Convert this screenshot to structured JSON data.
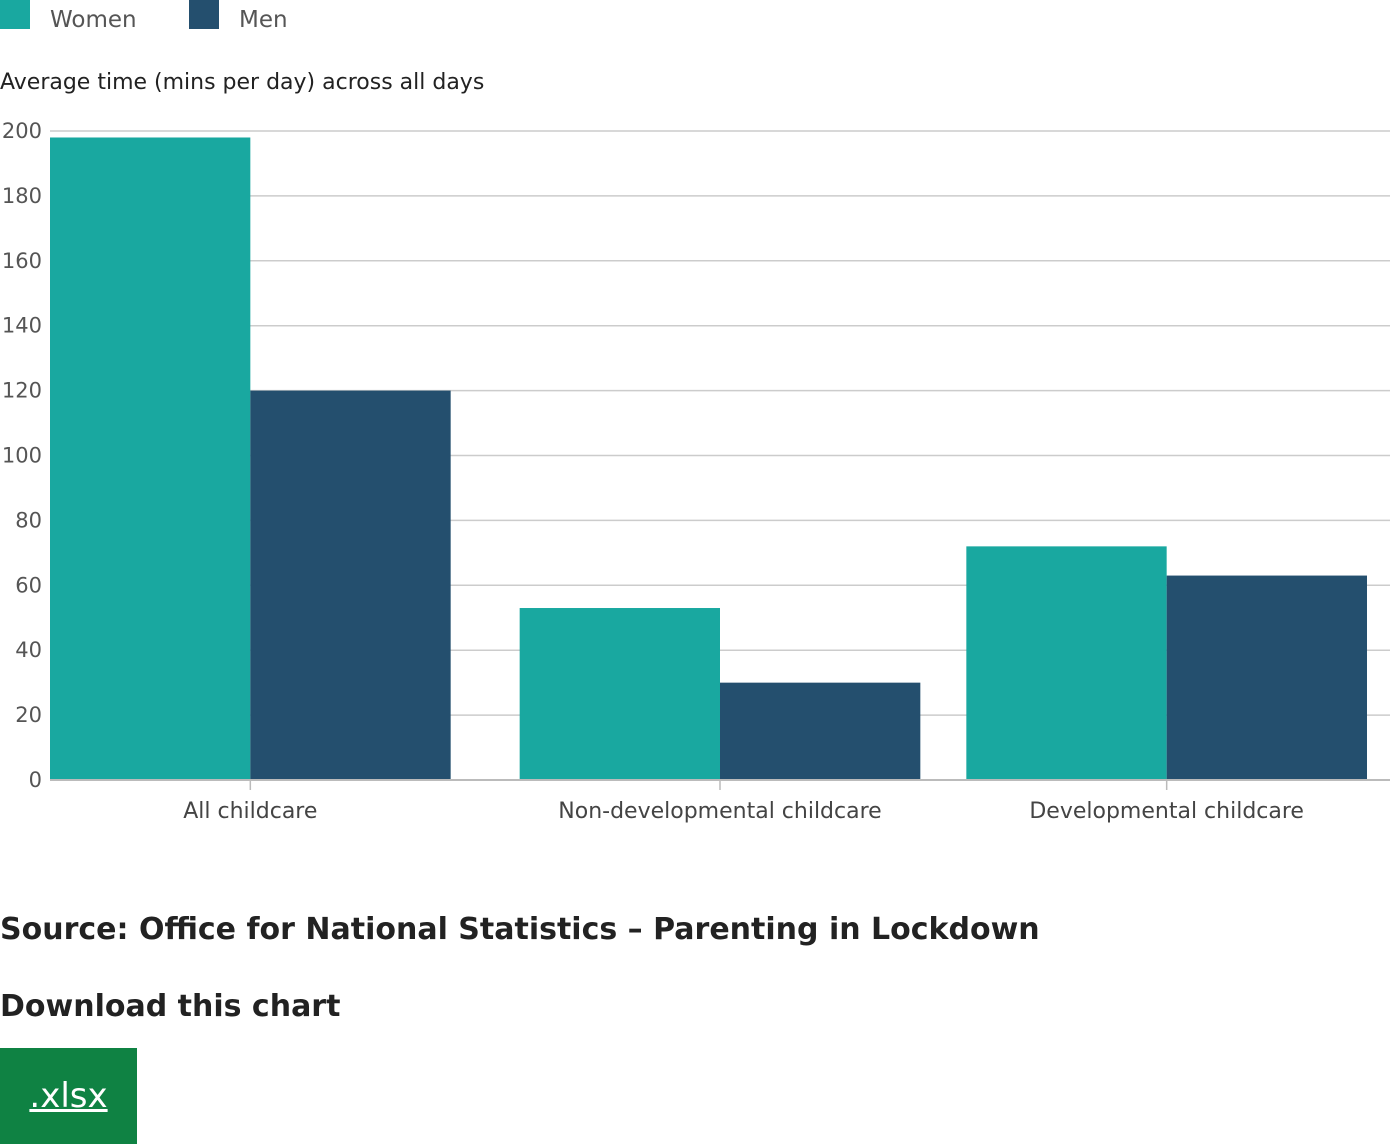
{
  "legend": {
    "items": [
      {
        "label": "Women",
        "color": "#19a8a0"
      },
      {
        "label": "Men",
        "color": "#244f6e"
      }
    ]
  },
  "chart_data": {
    "type": "bar",
    "title": "",
    "xlabel": "",
    "ylabel": "Average time (mins per day) across all days",
    "categories": [
      "All childcare",
      "Non-developmental childcare",
      "Developmental childcare"
    ],
    "series": [
      {
        "name": "Women",
        "values": [
          198,
          53,
          72
        ],
        "color": "#19a8a0"
      },
      {
        "name": "Men",
        "values": [
          120,
          30,
          63
        ],
        "color": "#244f6e"
      }
    ],
    "ylim": [
      0,
      200
    ],
    "yticks": [
      0,
      20,
      40,
      60,
      80,
      100,
      120,
      140,
      160,
      180,
      200
    ],
    "grid": true,
    "legend_position": "top-left"
  },
  "footer": {
    "source": "Source: Office for National Statistics – Parenting in Lockdown",
    "download_heading": "Download this chart",
    "download_button": ".xlsx",
    "button_color": "#0f8243"
  }
}
